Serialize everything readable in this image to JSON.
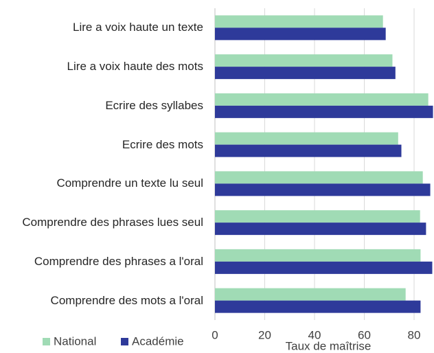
{
  "chart_data": {
    "type": "bar",
    "orientation": "horizontal",
    "x_label": "Taux de maîtrise",
    "categories": [
      "Lire a voix haute un texte",
      "Lire a voix haute des mots",
      "Ecrire des syllabes",
      "Ecrire des mots",
      "Comprendre un texte lu seul",
      "Comprendre des phrases lues seul",
      "Comprendre des phrases a l'oral",
      "Comprendre des mots a l'oral"
    ],
    "series": [
      {
        "name": "National",
        "color": "#a0dbb5",
        "values": [
          67.5,
          71.3,
          85.7,
          73.6,
          83.5,
          82.4,
          82.6,
          76.6
        ]
      },
      {
        "name": "Académie",
        "color": "#2e3a9a",
        "values": [
          68.6,
          72.5,
          87.6,
          74.9,
          86.5,
          84.8,
          87.3,
          82.6
        ]
      }
    ],
    "xlim": [
      0,
      88
    ],
    "xticks": [
      0,
      20,
      40,
      60,
      80
    ],
    "grid": true,
    "legend": "bottom-left"
  }
}
